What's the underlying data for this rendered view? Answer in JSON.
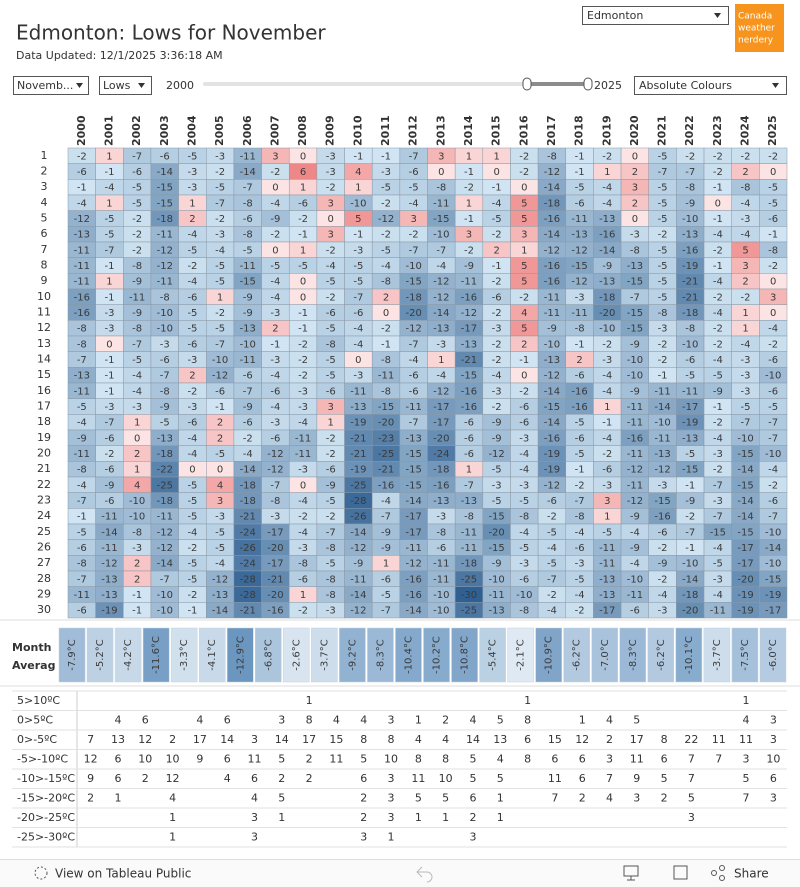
{
  "header": {
    "title": "Edmonton: Lows for November",
    "subtitle": "Data Updated: 12/1/2025 3:36:18 AM",
    "location": "Edmonton",
    "logo": [
      "Canada",
      "weather",
      "nerdery"
    ]
  },
  "controls": {
    "month": "Novemb...",
    "measure": "Lows",
    "range_start": "2000",
    "range_end": "2025",
    "colour_mode": "Absolute Colours"
  },
  "chart_data": {
    "type": "heatmap",
    "years": [
      "2000",
      "2001",
      "2002",
      "2003",
      "2004",
      "2005",
      "2006",
      "2007",
      "2008",
      "2009",
      "2010",
      "2011",
      "2012",
      "2013",
      "2014",
      "2015",
      "2016",
      "2017",
      "2018",
      "2019",
      "2020",
      "2021",
      "2022",
      "2023",
      "2024",
      "2025"
    ],
    "days": [
      "1",
      "2",
      "3",
      "4",
      "5",
      "6",
      "7",
      "8",
      "9",
      "10",
      "11",
      "12",
      "13",
      "14",
      "15",
      "16",
      "17",
      "18",
      "19",
      "20",
      "21",
      "22",
      "23",
      "24",
      "25",
      "26",
      "27",
      "28",
      "29",
      "30"
    ],
    "values": [
      [
        -2,
        1,
        -7,
        -6,
        -5,
        -3,
        -11,
        3,
        0,
        -3,
        -1,
        -1,
        -7,
        3,
        1,
        1,
        -2,
        -8,
        -1,
        -2,
        0,
        -5,
        -2,
        -2,
        -2,
        -2
      ],
      [
        -6,
        -1,
        -6,
        -14,
        -3,
        -2,
        -14,
        -2,
        6,
        -3,
        4,
        -3,
        -6,
        0,
        -1,
        0,
        -2,
        -12,
        -1,
        1,
        2,
        -7,
        -7,
        -2,
        2,
        0
      ],
      [
        -1,
        -4,
        -5,
        -15,
        -3,
        -5,
        -7,
        0,
        1,
        -2,
        1,
        -5,
        -5,
        -8,
        -2,
        -1,
        0,
        -14,
        -5,
        -4,
        3,
        -5,
        -8,
        -1,
        -8,
        -5
      ],
      [
        -4,
        1,
        -5,
        -15,
        1,
        -7,
        -8,
        -4,
        -6,
        3,
        -10,
        -2,
        -4,
        -11,
        1,
        -4,
        5,
        -18,
        -6,
        -4,
        2,
        -5,
        -9,
        0,
        -4,
        -5
      ],
      [
        -12,
        -5,
        -2,
        -18,
        2,
        -2,
        -6,
        -9,
        -2,
        0,
        5,
        -12,
        3,
        -15,
        -1,
        -5,
        5,
        -16,
        -11,
        -13,
        0,
        -5,
        -10,
        -1,
        -3,
        -6
      ],
      [
        -13,
        -5,
        -2,
        -11,
        -4,
        -3,
        -8,
        -2,
        -1,
        3,
        -1,
        -2,
        -2,
        -10,
        3,
        -2,
        3,
        -14,
        -13,
        -16,
        -3,
        -2,
        -13,
        -4,
        -4,
        -1
      ],
      [
        -11,
        -7,
        -2,
        -12,
        -5,
        -4,
        -5,
        0,
        1,
        -2,
        -3,
        -5,
        -7,
        -7,
        -2,
        2,
        1,
        -12,
        -12,
        -14,
        -8,
        -5,
        -16,
        -2,
        5,
        -8
      ],
      [
        -11,
        -1,
        -8,
        -12,
        -2,
        -5,
        -11,
        -5,
        -5,
        -4,
        -5,
        -4,
        -10,
        -4,
        -9,
        -1,
        5,
        -16,
        -15,
        -9,
        -13,
        -5,
        -19,
        -1,
        3,
        -2
      ],
      [
        -11,
        1,
        -9,
        -11,
        -4,
        -5,
        -15,
        -4,
        0,
        -5,
        -5,
        -8,
        -15,
        -12,
        -11,
        -2,
        5,
        -16,
        -12,
        -13,
        -15,
        -5,
        -21,
        -4,
        2,
        0
      ],
      [
        -16,
        -1,
        -11,
        -8,
        -6,
        1,
        -9,
        -4,
        0,
        -2,
        -7,
        2,
        -18,
        -12,
        -16,
        -6,
        -2,
        -11,
        -3,
        -18,
        -7,
        -5,
        -21,
        -2,
        -2,
        3
      ],
      [
        -16,
        -3,
        -9,
        -10,
        -5,
        -2,
        -9,
        -3,
        -1,
        -6,
        -6,
        0,
        -20,
        -14,
        -12,
        -2,
        4,
        -11,
        -11,
        -20,
        -15,
        -8,
        -18,
        -4,
        1,
        0
      ],
      [
        -8,
        -3,
        -8,
        -10,
        -5,
        -5,
        -13,
        2,
        -1,
        -5,
        -4,
        -2,
        -12,
        -13,
        -17,
        -3,
        5,
        -9,
        -8,
        -10,
        -15,
        -3,
        -8,
        -2,
        1,
        -4
      ],
      [
        -8,
        0,
        -7,
        -3,
        -6,
        -7,
        -10,
        -1,
        -2,
        -8,
        -4,
        -1,
        -7,
        -3,
        -13,
        -2,
        2,
        -10,
        -1,
        -2,
        -9,
        -2,
        -10,
        -2,
        -4,
        -2
      ],
      [
        -7,
        -1,
        -5,
        -6,
        -3,
        -10,
        -11,
        -3,
        -2,
        -5,
        0,
        -8,
        -4,
        1,
        -21,
        -2,
        -1,
        -13,
        2,
        -3,
        -10,
        -2,
        -6,
        -4,
        -3,
        -6
      ],
      [
        -13,
        -1,
        -4,
        -7,
        2,
        -12,
        -6,
        -4,
        -2,
        -5,
        -3,
        -11,
        -6,
        -4,
        -15,
        -4,
        0,
        -12,
        -6,
        -4,
        -10,
        -1,
        -5,
        -5,
        -3,
        -10
      ],
      [
        -11,
        -1,
        -4,
        -8,
        -2,
        -6,
        -7,
        -6,
        -3,
        -6,
        -11,
        -8,
        -6,
        -12,
        -16,
        -3,
        -2,
        -14,
        -16,
        -4,
        -9,
        -11,
        -11,
        -9,
        -3,
        -6
      ],
      [
        -5,
        -3,
        -3,
        -9,
        -3,
        -1,
        -9,
        -4,
        -3,
        3,
        -13,
        -15,
        -11,
        -17,
        -16,
        -2,
        -6,
        -15,
        -16,
        1,
        -11,
        -14,
        -17,
        -1,
        -5,
        -5
      ],
      [
        -4,
        -7,
        1,
        -5,
        -6,
        2,
        -6,
        -3,
        -4,
        1,
        -19,
        -20,
        -7,
        -17,
        -6,
        -9,
        -6,
        -14,
        -5,
        -1,
        -11,
        -10,
        -19,
        -2,
        -7,
        -7
      ],
      [
        -9,
        -6,
        0,
        -13,
        -4,
        2,
        -2,
        -6,
        -11,
        -2,
        -21,
        -23,
        -13,
        -20,
        -6,
        -9,
        -3,
        -16,
        -6,
        -4,
        -16,
        -11,
        -13,
        -4,
        -10,
        -7
      ],
      [
        -11,
        -2,
        2,
        -18,
        -4,
        -5,
        -4,
        -12,
        -11,
        -2,
        -21,
        -25,
        -15,
        -24,
        -6,
        -12,
        -4,
        -19,
        -5,
        -2,
        -11,
        -13,
        -5,
        -3,
        -15,
        -10
      ],
      [
        -8,
        -6,
        1,
        -22,
        0,
        0,
        -14,
        -12,
        -3,
        -6,
        -19,
        -21,
        -15,
        -18,
        1,
        -5,
        -4,
        -19,
        -1,
        -6,
        -12,
        -12,
        -15,
        -2,
        -14,
        -4
      ],
      [
        -4,
        -9,
        4,
        -25,
        -5,
        4,
        -18,
        -7,
        0,
        -9,
        -25,
        -16,
        -15,
        -16,
        -7,
        -3,
        -3,
        -12,
        -2,
        -3,
        -11,
        -3,
        -1,
        -7,
        -15,
        -2
      ],
      [
        -7,
        -6,
        -10,
        -18,
        -5,
        3,
        -18,
        -8,
        -4,
        -5,
        -28,
        -4,
        -14,
        -13,
        -13,
        -5,
        -5,
        -6,
        -7,
        3,
        -12,
        -15,
        -9,
        -3,
        -14,
        -6
      ],
      [
        -1,
        -11,
        -10,
        -11,
        -5,
        -3,
        -21,
        -3,
        -2,
        -2,
        -26,
        -7,
        -17,
        -3,
        -8,
        -15,
        -8,
        -2,
        -8,
        1,
        -9,
        -16,
        -2,
        -7,
        -14,
        -7
      ],
      [
        -5,
        -14,
        -8,
        -12,
        -4,
        -5,
        -24,
        -17,
        -4,
        -7,
        -14,
        -9,
        -17,
        -8,
        -11,
        -20,
        -4,
        -5,
        -4,
        -5,
        -4,
        -6,
        -7,
        -15,
        -15,
        -10
      ],
      [
        -6,
        -11,
        -3,
        -12,
        -2,
        -5,
        -26,
        -20,
        -3,
        -8,
        -12,
        -9,
        -11,
        -6,
        -11,
        -15,
        -5,
        -4,
        -6,
        -11,
        -9,
        -2,
        -1,
        -4,
        -17,
        -14
      ],
      [
        -8,
        -12,
        2,
        -14,
        -5,
        -4,
        -24,
        -17,
        -8,
        -5,
        -9,
        1,
        -12,
        -11,
        -18,
        -9,
        -3,
        -5,
        -3,
        -11,
        -4,
        -9,
        -10,
        -5,
        -17,
        -10
      ],
      [
        -7,
        -13,
        2,
        -7,
        -5,
        -12,
        -28,
        -21,
        -6,
        -8,
        -11,
        -6,
        -16,
        -11,
        -25,
        -10,
        -6,
        -7,
        -5,
        -13,
        -10,
        -2,
        -14,
        -3,
        -20,
        -15
      ],
      [
        -11,
        -13,
        -1,
        -10,
        -2,
        -13,
        -28,
        -20,
        1,
        -8,
        -14,
        -5,
        -16,
        -10,
        -30,
        -11,
        -10,
        -2,
        -4,
        -13,
        -11,
        -4,
        -18,
        -4,
        -19,
        -19
      ],
      [
        -6,
        -19,
        -1,
        -10,
        -1,
        -14,
        -21,
        -16,
        -2,
        -3,
        -12,
        -7,
        -14,
        -10,
        -25,
        -13,
        -8,
        -4,
        -2,
        -17,
        -6,
        -3,
        -20,
        -11,
        -19,
        -17
      ]
    ],
    "average_label": [
      "Month",
      "Averag"
    ],
    "averages": [
      -7.9,
      -5.2,
      -4.2,
      -11.6,
      -3.3,
      -4.1,
      -12.9,
      -6.8,
      -2.6,
      -3.7,
      -9.2,
      -8.3,
      -10.4,
      -10.2,
      -10.8,
      -5.4,
      -2.1,
      -10.9,
      -6.2,
      -7.0,
      -8.3,
      -6.2,
      -10.1,
      -3.7,
      -7.5,
      -6.0
    ],
    "average_labels": [
      "-7.9°C",
      "-5.2°C",
      "-4.2°C",
      "-11.6°C",
      "-3.3°C",
      "-4.1°C",
      "-12.9°C",
      "-6.8°C",
      "-2.6°C",
      "-3.7°C",
      "-9.2°C",
      "-8.3°C",
      "-10.4°C",
      "-10.2°C",
      "-10.8°C",
      "-5.4°C",
      "-2.1°C",
      "-10.9°C",
      "-6.2°C",
      "-7.0°C",
      "-8.3°C",
      "-6.2°C",
      "-10.1°C",
      "-3.7°C",
      "-7.5°C",
      "-6.0°C"
    ],
    "count_table": [
      {
        "label": "5>10ºC",
        "counts": [
          null,
          null,
          null,
          null,
          null,
          null,
          null,
          null,
          1,
          null,
          null,
          null,
          null,
          null,
          null,
          null,
          1,
          null,
          null,
          null,
          null,
          null,
          null,
          null,
          1,
          null
        ]
      },
      {
        "label": "0>5ºC",
        "counts": [
          null,
          4,
          6,
          null,
          4,
          6,
          null,
          3,
          8,
          4,
          4,
          3,
          1,
          2,
          4,
          5,
          8,
          null,
          1,
          4,
          5,
          null,
          null,
          null,
          4,
          3
        ]
      },
      {
        "label": "0>-5ºC",
        "counts": [
          7,
          13,
          12,
          2,
          17,
          14,
          3,
          14,
          17,
          15,
          8,
          8,
          4,
          4,
          14,
          13,
          6,
          15,
          12,
          2,
          17,
          8,
          22,
          11,
          11,
          3
        ]
      },
      {
        "label": "-5>-10ºC",
        "counts": [
          12,
          6,
          10,
          10,
          9,
          6,
          11,
          5,
          2,
          11,
          5,
          10,
          8,
          8,
          5,
          4,
          8,
          6,
          6,
          3,
          11,
          6,
          7,
          7,
          3,
          10
        ]
      },
      {
        "label": "-10>-15ºC",
        "counts": [
          9,
          6,
          2,
          12,
          null,
          4,
          6,
          2,
          2,
          null,
          6,
          3,
          11,
          10,
          5,
          5,
          null,
          11,
          6,
          7,
          9,
          5,
          7,
          null,
          5,
          6
        ]
      },
      {
        "label": "-15>-20ºC",
        "counts": [
          2,
          1,
          null,
          4,
          null,
          null,
          4,
          5,
          null,
          null,
          2,
          3,
          5,
          5,
          6,
          1,
          null,
          7,
          2,
          4,
          3,
          2,
          5,
          null,
          7,
          3
        ]
      },
      {
        "label": "-20>-25ºC",
        "counts": [
          null,
          null,
          null,
          1,
          null,
          null,
          3,
          1,
          null,
          null,
          2,
          3,
          1,
          1,
          2,
          1,
          null,
          null,
          null,
          null,
          null,
          null,
          3,
          null,
          null,
          null
        ]
      },
      {
        "label": "-25>-30ºC",
        "counts": [
          null,
          null,
          null,
          1,
          null,
          null,
          3,
          null,
          null,
          null,
          3,
          1,
          null,
          null,
          3,
          null,
          null,
          null,
          null,
          null,
          null,
          null,
          null,
          null,
          null,
          null
        ]
      }
    ]
  },
  "toolbar": {
    "view": "View on Tableau Public",
    "share": "Share"
  }
}
